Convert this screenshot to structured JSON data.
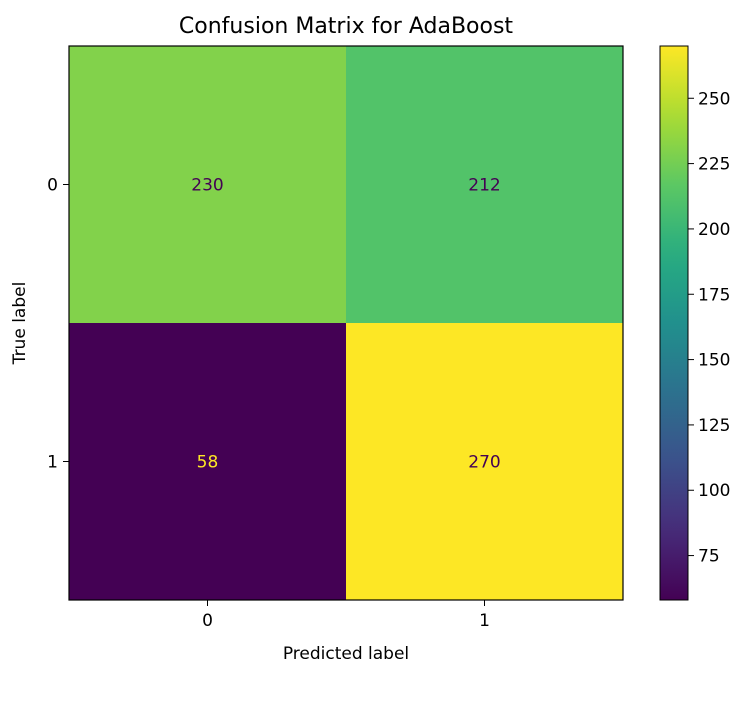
{
  "chart_data": {
    "type": "heatmap",
    "title": "Confusion Matrix for AdaBoost",
    "xlabel": "Predicted label",
    "ylabel": "True label",
    "x_categories": [
      "0",
      "1"
    ],
    "y_categories": [
      "0",
      "1"
    ],
    "values": [
      [
        230,
        212
      ],
      [
        58,
        270
      ]
    ],
    "colormap": "viridis",
    "colorbar": {
      "range": [
        58,
        270
      ],
      "ticks": [
        75,
        100,
        125,
        150,
        175,
        200,
        225,
        250
      ]
    },
    "text_colors": {
      "light_cell": "#440154",
      "dark_cell": "#fde725"
    }
  }
}
